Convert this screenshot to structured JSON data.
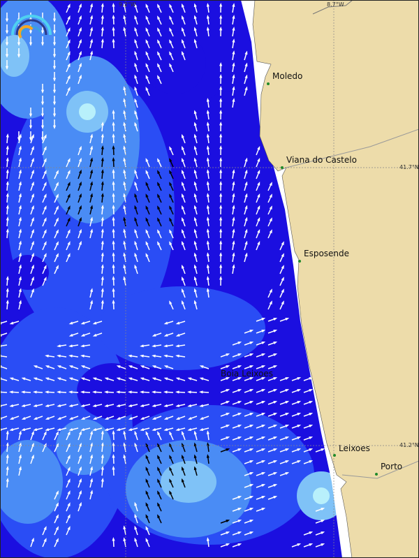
{
  "map": {
    "colors": {
      "ocean_deep": "#1b0fe0",
      "ocean_mid": "#2a4df5",
      "ocean_light": "#4a8cf5",
      "ocean_lighter": "#7fc2f7",
      "ocean_peak": "#b8f0fb",
      "land": "#eddcaa",
      "coast_strip": "#ffffff"
    },
    "grid_labels": {
      "lon_left": "9.2°W",
      "lon_right": "8.7°W",
      "lat_top": "41.7°N",
      "lat_bottom": "41.2°N"
    },
    "places": [
      {
        "name": "Moledo"
      },
      {
        "name": "Viana do Castelo"
      },
      {
        "name": "Esposende"
      },
      {
        "name": "Boia Leixoes"
      },
      {
        "name": "Leixoes"
      },
      {
        "name": "Porto"
      }
    ],
    "logo_icon": "wave-arc-logo",
    "arrow_icon": "current-direction-arrow"
  }
}
